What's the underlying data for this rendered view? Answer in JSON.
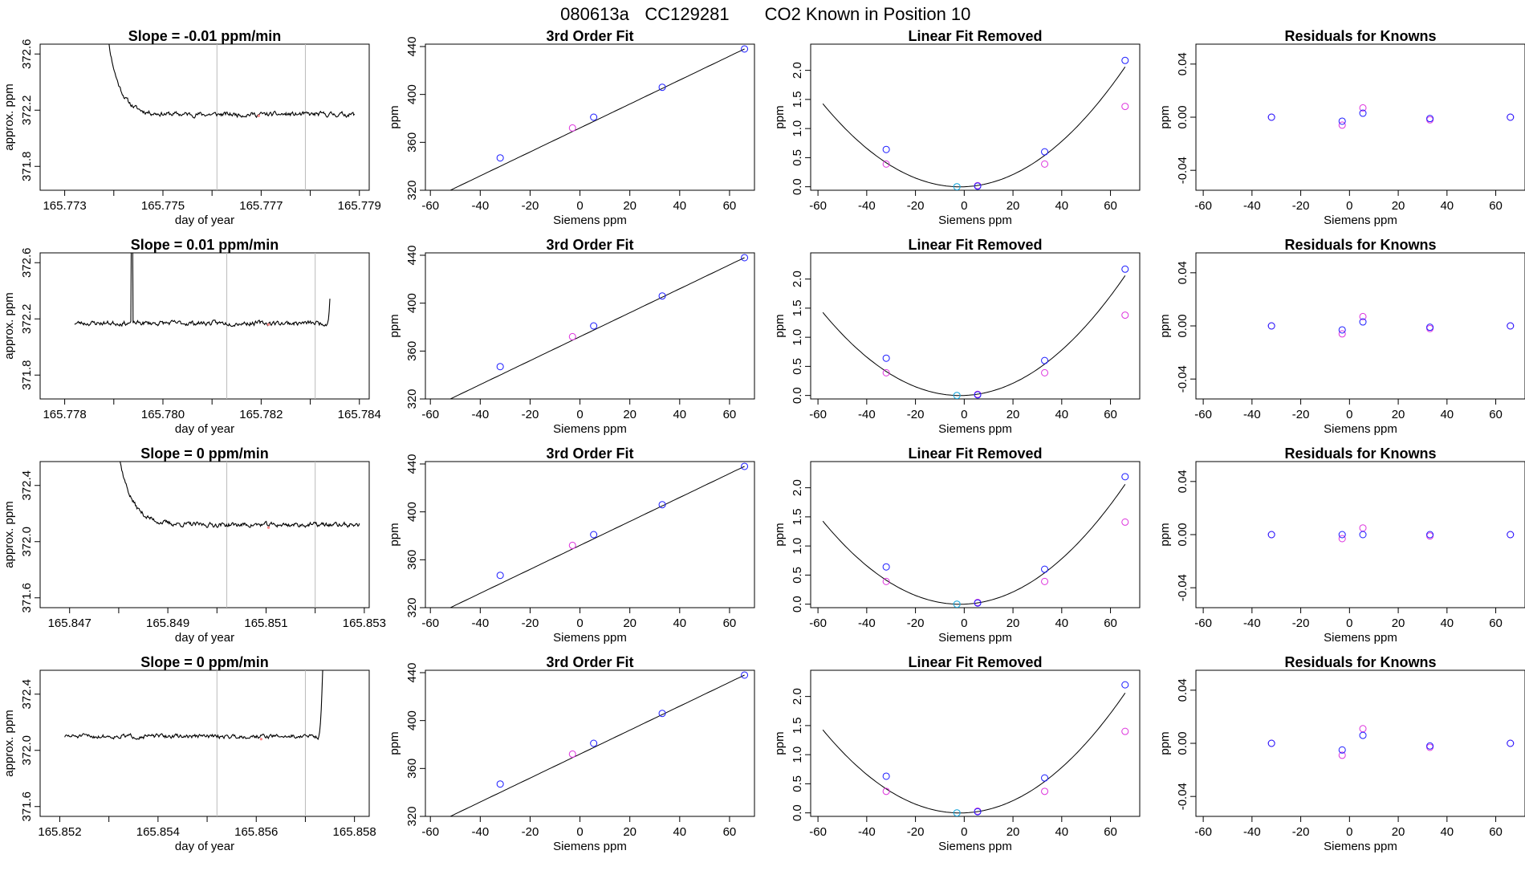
{
  "figure": {
    "title_parts": [
      "080613a",
      "CC129281",
      "CO2 Known in Position  10"
    ]
  },
  "colors": {
    "ink": "#000000",
    "known_fit": "#1a1aff",
    "known_raw": "#dd33dd",
    "reference": "#22aadd",
    "vline": "#bbbbbb",
    "trace_marker": "#ff8888"
  },
  "chart_data": [
    {
      "type": "line",
      "row": 0,
      "title": "Slope =  -0.01  ppm/min",
      "xlabel": "day of year",
      "ylabel": "approx. ppm",
      "xlim": [
        165.7725,
        165.7792
      ],
      "ylim": [
        371.63,
        372.67
      ],
      "xticks": [
        165.773,
        165.774,
        165.775,
        165.776,
        165.777,
        165.778,
        165.779
      ],
      "xtick_labels": [
        "165.773",
        "",
        "165.775",
        "",
        "165.777",
        "",
        "165.779"
      ],
      "yticks": [
        371.8,
        372.2,
        372.6
      ],
      "ytick_labels": [
        "371.8",
        "372.2",
        "372.6"
      ],
      "vlines": [
        165.7761,
        165.7779
      ],
      "marker": [
        165.77695,
        372.16
      ],
      "trace": {
        "x_start": 165.7738,
        "x_end": 165.7789,
        "n": 340,
        "shape": "decay",
        "x_break": 165.7745,
        "decay_x": 165.7742,
        "start_y": 372.95,
        "plateau": 372.17,
        "plateau_slope": -8,
        "noise_amp": 0.012,
        "seed": 11
      }
    },
    {
      "type": "scatter",
      "row": 0,
      "title": "3rd Order Fit",
      "xlabel": "Siemens ppm",
      "ylabel": "ppm",
      "xlim": [
        -62,
        70
      ],
      "ylim": [
        320,
        442
      ],
      "xticks": [
        -60,
        -40,
        -20,
        0,
        20,
        40,
        60
      ],
      "xtick_labels": [
        "-60",
        "-40",
        "-20",
        "0",
        "20",
        "40",
        "60"
      ],
      "yticks": [
        320,
        360,
        400,
        440
      ],
      "ytick_labels": [
        "320",
        "360",
        "400",
        "440"
      ],
      "curve": {
        "kind": "linear",
        "x0": -58,
        "x1": 66,
        "a": 372,
        "b": 1,
        "c": 0,
        "d": 0
      },
      "points_fit": [
        [
          -32,
          347
        ],
        [
          5.5,
          381
        ],
        [
          33,
          406
        ],
        [
          66,
          438
        ]
      ],
      "points_raw": [
        [
          -3,
          372
        ]
      ]
    },
    {
      "type": "scatter",
      "row": 0,
      "title": "Linear Fit Removed",
      "xlabel": "Siemens ppm",
      "ylabel": "ppm",
      "xlim": [
        -63,
        72
      ],
      "ylim": [
        -0.06,
        2.45
      ],
      "xticks": [
        -60,
        -40,
        -20,
        0,
        20,
        40,
        60
      ],
      "xtick_labels": [
        "-60",
        "-40",
        "-20",
        "0",
        "20",
        "40",
        "60"
      ],
      "yticks": [
        0,
        0.5,
        1.0,
        1.5,
        2.0
      ],
      "ytick_labels": [
        "0.0",
        "0.5",
        "1.0",
        "1.5",
        "2.0"
      ],
      "curve": {
        "kind": "quadratic",
        "x0": -58,
        "x1": 66,
        "a": 0,
        "b": 0.0015,
        "c": 0.00045,
        "d": 0
      },
      "points_fit": [
        [
          -32,
          0.64
        ],
        [
          5.5,
          0.01
        ],
        [
          33,
          0.6
        ],
        [
          66,
          2.17
        ]
      ],
      "points_raw": [
        [
          -32,
          0.39
        ],
        [
          5.5,
          0.02
        ],
        [
          33,
          0.39
        ],
        [
          66,
          1.38
        ]
      ],
      "points_ref": [
        [
          -3,
          0.0
        ]
      ]
    },
    {
      "type": "scatter",
      "row": 0,
      "title": "Residuals for Knowns",
      "xlabel": "Siemens ppm",
      "ylabel": "ppm",
      "xlim": [
        -63,
        72
      ],
      "ylim": [
        -0.055,
        0.055
      ],
      "xticks": [
        -60,
        -40,
        -20,
        0,
        20,
        40,
        60
      ],
      "xtick_labels": [
        "-60",
        "-40",
        "-20",
        "0",
        "20",
        "40",
        "60"
      ],
      "yticks": [
        -0.04,
        0.0,
        0.04
      ],
      "ytick_labels": [
        "-0.04",
        "0.00",
        "0.04"
      ],
      "points_fit": [
        [
          -32,
          0.0
        ],
        [
          -3,
          -0.003
        ],
        [
          5.5,
          0.003
        ],
        [
          33,
          -0.001
        ],
        [
          66,
          0.0
        ]
      ],
      "points_raw": [
        [
          -32,
          0.0
        ],
        [
          -3,
          -0.006
        ],
        [
          5.5,
          0.007
        ],
        [
          33,
          -0.002
        ],
        [
          66,
          0.0
        ]
      ]
    },
    {
      "type": "line",
      "row": 1,
      "title": "Slope =  0.01  ppm/min",
      "xlabel": "day of year",
      "ylabel": "approx. ppm",
      "xlim": [
        165.7775,
        165.7842
      ],
      "ylim": [
        371.63,
        372.67
      ],
      "xticks": [
        165.778,
        165.779,
        165.78,
        165.781,
        165.782,
        165.783,
        165.784
      ],
      "xtick_labels": [
        "165.778",
        "",
        "165.780",
        "",
        "165.782",
        "",
        "165.784"
      ],
      "yticks": [
        371.8,
        372.2,
        372.6
      ],
      "ytick_labels": [
        "371.8",
        "372.2",
        "372.6"
      ],
      "vlines": [
        165.7813,
        165.7831
      ],
      "marker": [
        165.78215,
        372.16
      ],
      "trace": {
        "x_start": 165.7782,
        "x_end": 165.7834,
        "n": 340,
        "shape": "flat_spike_rise",
        "spike_x": 165.77937,
        "rise_x": 165.78335,
        "plateau": 372.17,
        "plateau_slope": 0,
        "noise_amp": 0.012,
        "seed": 23
      }
    },
    {
      "type": "scatter",
      "row": 1,
      "title": "3rd Order Fit",
      "xlabel": "Siemens ppm",
      "ylabel": "ppm",
      "xlim": [
        -62,
        70
      ],
      "ylim": [
        320,
        442
      ],
      "xticks": [
        -60,
        -40,
        -20,
        0,
        20,
        40,
        60
      ],
      "xtick_labels": [
        "-60",
        "-40",
        "-20",
        "0",
        "20",
        "40",
        "60"
      ],
      "yticks": [
        320,
        360,
        400,
        440
      ],
      "ytick_labels": [
        "320",
        "360",
        "400",
        "440"
      ],
      "curve": {
        "kind": "linear",
        "x0": -58,
        "x1": 66,
        "a": 372,
        "b": 1,
        "c": 0,
        "d": 0
      },
      "points_fit": [
        [
          -32,
          347
        ],
        [
          5.5,
          381
        ],
        [
          33,
          406
        ],
        [
          66,
          438
        ]
      ],
      "points_raw": [
        [
          -3,
          372
        ]
      ]
    },
    {
      "type": "scatter",
      "row": 1,
      "title": "Linear Fit Removed",
      "xlabel": "Siemens ppm",
      "ylabel": "ppm",
      "xlim": [
        -63,
        72
      ],
      "ylim": [
        -0.06,
        2.45
      ],
      "xticks": [
        -60,
        -40,
        -20,
        0,
        20,
        40,
        60
      ],
      "xtick_labels": [
        "-60",
        "-40",
        "-20",
        "0",
        "20",
        "40",
        "60"
      ],
      "yticks": [
        0,
        0.5,
        1.0,
        1.5,
        2.0
      ],
      "ytick_labels": [
        "0.0",
        "0.5",
        "1.0",
        "1.5",
        "2.0"
      ],
      "curve": {
        "kind": "quadratic",
        "x0": -58,
        "x1": 66,
        "a": 0,
        "b": 0.0015,
        "c": 0.00045,
        "d": 0
      },
      "points_fit": [
        [
          -32,
          0.64
        ],
        [
          5.5,
          0.01
        ],
        [
          33,
          0.6
        ],
        [
          66,
          2.17
        ]
      ],
      "points_raw": [
        [
          -32,
          0.39
        ],
        [
          5.5,
          0.02
        ],
        [
          33,
          0.39
        ],
        [
          66,
          1.38
        ]
      ],
      "points_ref": [
        [
          -3,
          0.0
        ]
      ]
    },
    {
      "type": "scatter",
      "row": 1,
      "title": "Residuals for Knowns",
      "xlabel": "Siemens ppm",
      "ylabel": "ppm",
      "xlim": [
        -63,
        72
      ],
      "ylim": [
        -0.055,
        0.055
      ],
      "xticks": [
        -60,
        -40,
        -20,
        0,
        20,
        40,
        60
      ],
      "xtick_labels": [
        "-60",
        "-40",
        "-20",
        "0",
        "20",
        "40",
        "60"
      ],
      "yticks": [
        -0.04,
        0.0,
        0.04
      ],
      "ytick_labels": [
        "-0.04",
        "0.00",
        "0.04"
      ],
      "points_fit": [
        [
          -32,
          0.0
        ],
        [
          -3,
          -0.003
        ],
        [
          5.5,
          0.003
        ],
        [
          33,
          -0.001
        ],
        [
          66,
          0.0
        ]
      ],
      "points_raw": [
        [
          -32,
          0.0
        ],
        [
          -3,
          -0.006
        ],
        [
          5.5,
          0.007
        ],
        [
          33,
          -0.002
        ],
        [
          66,
          0.0
        ]
      ]
    },
    {
      "type": "line",
      "row": 2,
      "title": "Slope =  0  ppm/min",
      "xlabel": "day of year",
      "ylabel": "approx. ppm",
      "xlim": [
        165.8464,
        165.8531
      ],
      "ylim": [
        371.53,
        372.57
      ],
      "xticks": [
        165.847,
        165.848,
        165.849,
        165.85,
        165.851,
        165.852,
        165.853
      ],
      "xtick_labels": [
        "165.847",
        "",
        "165.849",
        "",
        "165.851",
        "",
        "165.853"
      ],
      "yticks": [
        371.6,
        372.0,
        372.4
      ],
      "ytick_labels": [
        "371.6",
        "372.0",
        "372.4"
      ],
      "vlines": [
        165.8502,
        165.852
      ],
      "marker": [
        165.85105,
        372.1
      ],
      "trace": {
        "x_start": 165.8479,
        "x_end": 165.8529,
        "n": 340,
        "shape": "decay",
        "x_break": 165.8486,
        "decay_x": 165.8484,
        "start_y": 372.85,
        "plateau": 372.12,
        "plateau_slope": -5,
        "noise_amp": 0.012,
        "seed": 37
      }
    },
    {
      "type": "scatter",
      "row": 2,
      "title": "3rd Order Fit",
      "xlabel": "Siemens ppm",
      "ylabel": "ppm",
      "xlim": [
        -62,
        70
      ],
      "ylim": [
        320,
        442
      ],
      "xticks": [
        -60,
        -40,
        -20,
        0,
        20,
        40,
        60
      ],
      "xtick_labels": [
        "-60",
        "-40",
        "-20",
        "0",
        "20",
        "40",
        "60"
      ],
      "yticks": [
        320,
        360,
        400,
        440
      ],
      "ytick_labels": [
        "320",
        "360",
        "400",
        "440"
      ],
      "curve": {
        "kind": "linear",
        "x0": -58,
        "x1": 66,
        "a": 372,
        "b": 1,
        "c": 0,
        "d": 0
      },
      "points_fit": [
        [
          -32,
          347
        ],
        [
          5.5,
          381
        ],
        [
          33,
          406
        ],
        [
          66,
          438
        ]
      ],
      "points_raw": [
        [
          -3,
          372
        ]
      ]
    },
    {
      "type": "scatter",
      "row": 2,
      "title": "Linear Fit Removed",
      "xlabel": "Siemens ppm",
      "ylabel": "ppm",
      "xlim": [
        -63,
        72
      ],
      "ylim": [
        -0.06,
        2.45
      ],
      "xticks": [
        -60,
        -40,
        -20,
        0,
        20,
        40,
        60
      ],
      "xtick_labels": [
        "-60",
        "-40",
        "-20",
        "0",
        "20",
        "40",
        "60"
      ],
      "yticks": [
        0,
        0.5,
        1.0,
        1.5,
        2.0
      ],
      "ytick_labels": [
        "0.0",
        "0.5",
        "1.0",
        "1.5",
        "2.0"
      ],
      "curve": {
        "kind": "quadratic",
        "x0": -58,
        "x1": 66,
        "a": 0,
        "b": 0.0015,
        "c": 0.00045,
        "d": 0
      },
      "points_fit": [
        [
          -32,
          0.64
        ],
        [
          5.5,
          0.02
        ],
        [
          33,
          0.6
        ],
        [
          66,
          2.19
        ]
      ],
      "points_raw": [
        [
          -32,
          0.39
        ],
        [
          5.5,
          0.03
        ],
        [
          33,
          0.39
        ],
        [
          66,
          1.41
        ]
      ],
      "points_ref": [
        [
          -3,
          0.0
        ]
      ]
    },
    {
      "type": "scatter",
      "row": 2,
      "title": "Residuals for Knowns",
      "xlabel": "Siemens ppm",
      "ylabel": "ppm",
      "xlim": [
        -63,
        72
      ],
      "ylim": [
        -0.055,
        0.055
      ],
      "xticks": [
        -60,
        -40,
        -20,
        0,
        20,
        40,
        60
      ],
      "xtick_labels": [
        "-60",
        "-40",
        "-20",
        "0",
        "20",
        "40",
        "60"
      ],
      "yticks": [
        -0.04,
        0.0,
        0.04
      ],
      "ytick_labels": [
        "-0.04",
        "0.00",
        "0.04"
      ],
      "points_fit": [
        [
          -32,
          0.0
        ],
        [
          -3,
          0.0
        ],
        [
          5.5,
          0.0
        ],
        [
          33,
          0.0
        ],
        [
          66,
          0.0
        ]
      ],
      "points_raw": [
        [
          -32,
          0.0
        ],
        [
          -3,
          -0.003
        ],
        [
          5.5,
          0.005
        ],
        [
          33,
          -0.001
        ],
        [
          66,
          0.0
        ]
      ]
    },
    {
      "type": "line",
      "row": 3,
      "title": "Slope =  0  ppm/min",
      "xlabel": "day of year",
      "ylabel": "approx. ppm",
      "xlim": [
        165.8516,
        165.8583
      ],
      "ylim": [
        371.53,
        372.57
      ],
      "xticks": [
        165.852,
        165.853,
        165.854,
        165.855,
        165.856,
        165.857,
        165.858
      ],
      "xtick_labels": [
        "165.852",
        "",
        "165.854",
        "",
        "165.856",
        "",
        "165.858"
      ],
      "yticks": [
        371.6,
        372.0,
        372.4
      ],
      "ytick_labels": [
        "371.6",
        "372.0",
        "372.4"
      ],
      "vlines": [
        165.8552,
        165.857
      ],
      "marker": [
        165.8561,
        372.08
      ],
      "trace": {
        "x_start": 165.8521,
        "x_end": 165.8574,
        "n": 340,
        "shape": "flat_rise",
        "rise_x": 165.85727,
        "plateau": 372.1,
        "plateau_slope": 0,
        "noise_amp": 0.011,
        "seed": 51
      }
    },
    {
      "type": "scatter",
      "row": 3,
      "title": "3rd Order Fit",
      "xlabel": "Siemens ppm",
      "ylabel": "ppm",
      "xlim": [
        -62,
        70
      ],
      "ylim": [
        320,
        442
      ],
      "xticks": [
        -60,
        -40,
        -20,
        0,
        20,
        40,
        60
      ],
      "xtick_labels": [
        "-60",
        "-40",
        "-20",
        "0",
        "20",
        "40",
        "60"
      ],
      "yticks": [
        320,
        360,
        400,
        440
      ],
      "ytick_labels": [
        "320",
        "360",
        "400",
        "440"
      ],
      "curve": {
        "kind": "linear",
        "x0": -58,
        "x1": 66,
        "a": 372,
        "b": 1,
        "c": 0,
        "d": 0
      },
      "points_fit": [
        [
          -32,
          347
        ],
        [
          5.5,
          381
        ],
        [
          33,
          406
        ],
        [
          66,
          438
        ]
      ],
      "points_raw": [
        [
          -3,
          372
        ]
      ]
    },
    {
      "type": "scatter",
      "row": 3,
      "title": "Linear Fit Removed",
      "xlabel": "Siemens ppm",
      "ylabel": "ppm",
      "xlim": [
        -63,
        72
      ],
      "ylim": [
        -0.06,
        2.45
      ],
      "xticks": [
        -60,
        -40,
        -20,
        0,
        20,
        40,
        60
      ],
      "xtick_labels": [
        "-60",
        "-40",
        "-20",
        "0",
        "20",
        "40",
        "60"
      ],
      "yticks": [
        0,
        0.5,
        1.0,
        1.5,
        2.0
      ],
      "ytick_labels": [
        "0.0",
        "0.5",
        "1.0",
        "1.5",
        "2.0"
      ],
      "curve": {
        "kind": "quadratic",
        "x0": -58,
        "x1": 66,
        "a": 0,
        "b": 0.0015,
        "c": 0.00045,
        "d": 0
      },
      "points_fit": [
        [
          -32,
          0.63
        ],
        [
          5.5,
          0.02
        ],
        [
          33,
          0.6
        ],
        [
          66,
          2.2
        ]
      ],
      "points_raw": [
        [
          -32,
          0.37
        ],
        [
          5.5,
          0.03
        ],
        [
          33,
          0.37
        ],
        [
          66,
          1.4
        ]
      ],
      "points_ref": [
        [
          -3,
          0.0
        ]
      ]
    },
    {
      "type": "scatter",
      "row": 3,
      "title": "Residuals for Knowns",
      "xlabel": "Siemens ppm",
      "ylabel": "ppm",
      "xlim": [
        -63,
        72
      ],
      "ylim": [
        -0.055,
        0.055
      ],
      "xticks": [
        -60,
        -40,
        -20,
        0,
        20,
        40,
        60
      ],
      "xtick_labels": [
        "-60",
        "-40",
        "-20",
        "0",
        "20",
        "40",
        "60"
      ],
      "yticks": [
        -0.04,
        0.0,
        0.04
      ],
      "ytick_labels": [
        "-0.04",
        "0.00",
        "0.04"
      ],
      "points_fit": [
        [
          -32,
          0.0
        ],
        [
          -3,
          -0.005
        ],
        [
          5.5,
          0.006
        ],
        [
          33,
          -0.002
        ],
        [
          66,
          0.0
        ]
      ],
      "points_raw": [
        [
          -32,
          0.0
        ],
        [
          -3,
          -0.009
        ],
        [
          5.5,
          0.011
        ],
        [
          33,
          -0.003
        ],
        [
          66,
          0.0
        ]
      ]
    }
  ]
}
